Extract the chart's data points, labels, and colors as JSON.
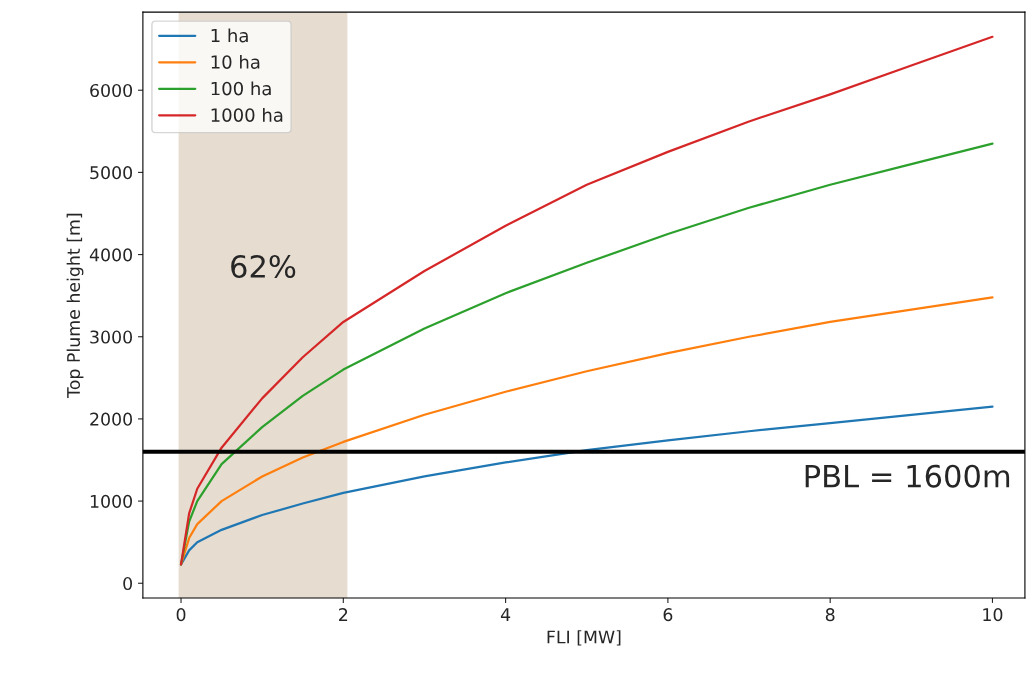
{
  "chart_data": {
    "type": "line",
    "xlabel": "FLI [MW]",
    "ylabel": "Top Plume height [m]",
    "x": [
      0,
      0.1,
      0.2,
      0.5,
      1,
      1.5,
      2,
      3,
      4,
      5,
      6,
      7,
      8,
      9,
      10
    ],
    "series": [
      {
        "name": "1 ha",
        "color": "#1f77b4",
        "values": [
          230,
          400,
          500,
          650,
          830,
          970,
          1100,
          1300,
          1470,
          1620,
          1740,
          1850,
          1950,
          2050,
          2150
        ]
      },
      {
        "name": "10 ha",
        "color": "#ff7f0e",
        "values": [
          230,
          550,
          720,
          1000,
          1300,
          1530,
          1720,
          2050,
          2330,
          2580,
          2800,
          3000,
          3180,
          3330,
          3480
        ]
      },
      {
        "name": "100 ha",
        "color": "#2ca02c",
        "values": [
          230,
          750,
          1000,
          1450,
          1900,
          2280,
          2600,
          3100,
          3530,
          3900,
          4250,
          4570,
          4850,
          5100,
          5350
        ]
      },
      {
        "name": "1000 ha",
        "color": "#d62728",
        "values": [
          230,
          850,
          1150,
          1650,
          2250,
          2750,
          3180,
          3800,
          4350,
          4850,
          5250,
          5620,
          5950,
          6300,
          6650
        ]
      }
    ],
    "xlim": [
      -0.47,
      10.4
    ],
    "ylim": [
      -180,
      6950
    ],
    "xticks": [
      0,
      2,
      4,
      6,
      8,
      10
    ],
    "yticks": [
      0,
      1000,
      2000,
      3000,
      4000,
      5000,
      6000
    ],
    "bands": [
      {
        "axis": "x",
        "from": -0.03,
        "to": 2.05,
        "label": "62%",
        "color": "#e6dccf"
      }
    ],
    "ref_lines": [
      {
        "axis": "y",
        "value": 1600,
        "label": "PBL = 1600m",
        "color": "#000000"
      }
    ],
    "legend": "top left",
    "grid": false
  }
}
